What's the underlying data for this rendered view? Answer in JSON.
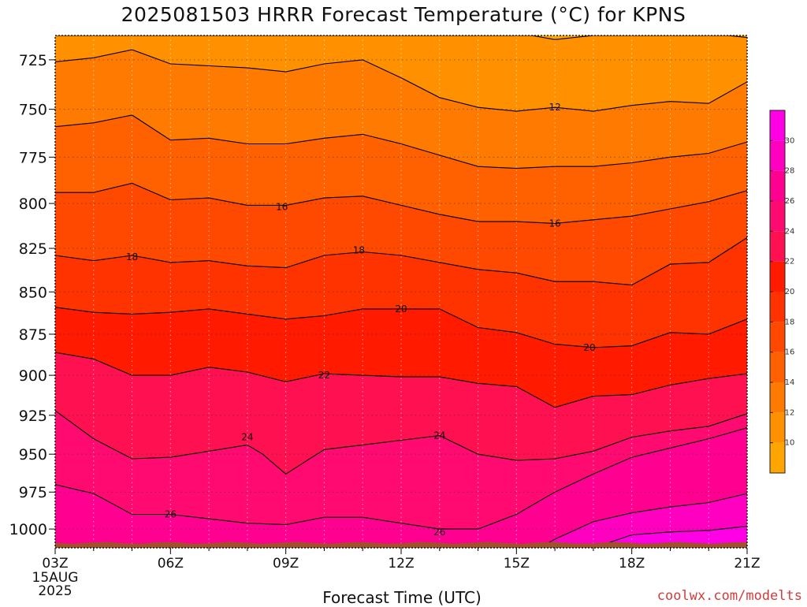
{
  "title": "2025081503 HRRR Forecast Temperature (°C) for KPNS",
  "credit": "coolwx.com/modelts",
  "colors": {
    "ground": "#a0522d",
    "contour_line": "#000000",
    "grid": "#bbbbbb"
  },
  "chart_data": {
    "type": "heatmap",
    "title": "2025081503 HRRR Forecast Temperature (°C) for KPNS",
    "xlabel": "Forecast Time (UTC)",
    "ylabel": "",
    "x_ticks": [
      "03Z",
      "06Z",
      "09Z",
      "12Z",
      "15Z",
      "18Z",
      "21Z"
    ],
    "x_tick_hours": [
      3,
      6,
      9,
      12,
      15,
      18,
      21
    ],
    "x_first_tick_extra": [
      "15AUG",
      "2025"
    ],
    "xlim": [
      3,
      21
    ],
    "y_ticks": [
      725,
      750,
      775,
      800,
      825,
      850,
      875,
      900,
      925,
      950,
      975,
      1000
    ],
    "ylim": [
      1013,
      713
    ],
    "y_scale": "log",
    "grid": true,
    "colorbar": {
      "ticks": [
        10,
        12,
        14,
        16,
        18,
        20,
        22,
        24,
        26,
        28,
        30
      ],
      "bins": [
        {
          "range": [
            8,
            10
          ],
          "color": "#ffa500"
        },
        {
          "range": [
            10,
            12
          ],
          "color": "#ff9000"
        },
        {
          "range": [
            12,
            14
          ],
          "color": "#ff7a00"
        },
        {
          "range": [
            14,
            16
          ],
          "color": "#ff6000"
        },
        {
          "range": [
            16,
            18
          ],
          "color": "#ff4800"
        },
        {
          "range": [
            18,
            20
          ],
          "color": "#ff3300"
        },
        {
          "range": [
            20,
            22
          ],
          "color": "#ff1a00"
        },
        {
          "range": [
            22,
            24
          ],
          "color": "#ff1050"
        },
        {
          "range": [
            24,
            26
          ],
          "color": "#ff0a70"
        },
        {
          "range": [
            26,
            28
          ],
          "color": "#ff0090"
        },
        {
          "range": [
            28,
            30
          ],
          "color": "#ff00c0"
        },
        {
          "range": [
            30,
            32
          ],
          "color": "#ff00e6"
        }
      ]
    },
    "contours": [
      {
        "level": 10,
        "points": [
          [
            3,
            713
          ],
          [
            15.4,
            713
          ],
          [
            16,
            715
          ],
          [
            17,
            713
          ],
          [
            20.5,
            713
          ],
          [
            21,
            714
          ]
        ]
      },
      {
        "level": 12,
        "points": [
          [
            3,
            726
          ],
          [
            4,
            724
          ],
          [
            5,
            720
          ],
          [
            6,
            727
          ],
          [
            7,
            728
          ],
          [
            8,
            729
          ],
          [
            9,
            731
          ],
          [
            10,
            727
          ],
          [
            11,
            725
          ],
          [
            12,
            734
          ],
          [
            13,
            744
          ],
          [
            14,
            749
          ],
          [
            15,
            751
          ],
          [
            16,
            749
          ],
          [
            17,
            751
          ],
          [
            18,
            748
          ],
          [
            19,
            746
          ],
          [
            20,
            747
          ],
          [
            21,
            736
          ]
        ]
      },
      {
        "level": 14,
        "points": [
          [
            3,
            759
          ],
          [
            4,
            757
          ],
          [
            5,
            753
          ],
          [
            6,
            766
          ],
          [
            7,
            765
          ],
          [
            8,
            768
          ],
          [
            9,
            768
          ],
          [
            10,
            765
          ],
          [
            11,
            763
          ],
          [
            12,
            768
          ],
          [
            13,
            774
          ],
          [
            14,
            780
          ],
          [
            15,
            781
          ],
          [
            16,
            780
          ],
          [
            17,
            780
          ],
          [
            18,
            778
          ],
          [
            19,
            775
          ],
          [
            20,
            773
          ],
          [
            21,
            767
          ]
        ]
      },
      {
        "level": 16,
        "points": [
          [
            3,
            794
          ],
          [
            4,
            794
          ],
          [
            5,
            789
          ],
          [
            6,
            798
          ],
          [
            7,
            797
          ],
          [
            8,
            801
          ],
          [
            9,
            801
          ],
          [
            10,
            797
          ],
          [
            11,
            796
          ],
          [
            12,
            801
          ],
          [
            13,
            806
          ],
          [
            14,
            810
          ],
          [
            15,
            810
          ],
          [
            16,
            811
          ],
          [
            17,
            809
          ],
          [
            18,
            807
          ],
          [
            19,
            803
          ],
          [
            20,
            799
          ],
          [
            21,
            793
          ]
        ]
      },
      {
        "level": 18,
        "points": [
          [
            3,
            829
          ],
          [
            4,
            832
          ],
          [
            5,
            829
          ],
          [
            6,
            833
          ],
          [
            7,
            832
          ],
          [
            8,
            835
          ],
          [
            9,
            836
          ],
          [
            10,
            829
          ],
          [
            11,
            827
          ],
          [
            12,
            829
          ],
          [
            13,
            833
          ],
          [
            14,
            837
          ],
          [
            15,
            839
          ],
          [
            16,
            844
          ],
          [
            17,
            844
          ],
          [
            18,
            846
          ],
          [
            19,
            834
          ],
          [
            20,
            833
          ],
          [
            21,
            819
          ]
        ]
      },
      {
        "level": 20,
        "points": [
          [
            3,
            859
          ],
          [
            4,
            862
          ],
          [
            5,
            863
          ],
          [
            6,
            862
          ],
          [
            7,
            860
          ],
          [
            8,
            863
          ],
          [
            9,
            866
          ],
          [
            10,
            864
          ],
          [
            11,
            860
          ],
          [
            12,
            860
          ],
          [
            13,
            860
          ],
          [
            14,
            871
          ],
          [
            15,
            874
          ],
          [
            16,
            881
          ],
          [
            17,
            883
          ],
          [
            18,
            882
          ],
          [
            19,
            874
          ],
          [
            20,
            875
          ],
          [
            21,
            866
          ]
        ]
      },
      {
        "level": 22,
        "points": [
          [
            3,
            886
          ],
          [
            4,
            890
          ],
          [
            5,
            900
          ],
          [
            6,
            900
          ],
          [
            7,
            895
          ],
          [
            8,
            898
          ],
          [
            9,
            904
          ],
          [
            10,
            899
          ],
          [
            11,
            900
          ],
          [
            12,
            901
          ],
          [
            13,
            901
          ],
          [
            14,
            905
          ],
          [
            15,
            907
          ],
          [
            16,
            920
          ],
          [
            17,
            913
          ],
          [
            18,
            912
          ],
          [
            19,
            906
          ],
          [
            20,
            902
          ],
          [
            21,
            899
          ]
        ]
      },
      {
        "level": 24,
        "points": [
          [
            3,
            922
          ],
          [
            4,
            940
          ],
          [
            5,
            953
          ],
          [
            6,
            952
          ],
          [
            7,
            948
          ],
          [
            8,
            944
          ],
          [
            8.4,
            950
          ],
          [
            9,
            963
          ],
          [
            10,
            947
          ],
          [
            11,
            944
          ],
          [
            12,
            941
          ],
          [
            13,
            938
          ],
          [
            14,
            950
          ],
          [
            15,
            954
          ],
          [
            16,
            953
          ],
          [
            17,
            948
          ],
          [
            18,
            939
          ],
          [
            19,
            935
          ],
          [
            20,
            932
          ],
          [
            21,
            924
          ]
        ]
      },
      {
        "level": 26,
        "points": [
          [
            3,
            970
          ],
          [
            4,
            976
          ],
          [
            5,
            990
          ],
          [
            6,
            990
          ],
          [
            7,
            993
          ],
          [
            8,
            996
          ],
          [
            9,
            997
          ],
          [
            10,
            992
          ],
          [
            11,
            992
          ],
          [
            12,
            996
          ],
          [
            13,
            1000
          ],
          [
            14,
            1000
          ],
          [
            15,
            990
          ],
          [
            16,
            975
          ],
          [
            17,
            963
          ],
          [
            18,
            952
          ],
          [
            19,
            946
          ],
          [
            20,
            940
          ],
          [
            21,
            933
          ]
        ]
      },
      {
        "level": 28,
        "points": [
          [
            15.6,
            1013
          ],
          [
            16,
            1007
          ],
          [
            17,
            995
          ],
          [
            18,
            989
          ],
          [
            19,
            985
          ],
          [
            20,
            982
          ],
          [
            21,
            976
          ]
        ]
      },
      {
        "level": 30,
        "points": [
          [
            17,
            1013
          ],
          [
            18,
            1004
          ],
          [
            19,
            1002
          ],
          [
            20,
            1001
          ],
          [
            21,
            998
          ]
        ]
      }
    ],
    "contour_labels": [
      {
        "text": "12",
        "x": 16.0,
        "y": 749
      },
      {
        "text": "16",
        "x": 8.9,
        "y": 802
      },
      {
        "text": "16",
        "x": 16.0,
        "y": 811
      },
      {
        "text": "18",
        "x": 5.0,
        "y": 830
      },
      {
        "text": "18",
        "x": 10.9,
        "y": 826
      },
      {
        "text": "20",
        "x": 12.0,
        "y": 860
      },
      {
        "text": "20",
        "x": 16.9,
        "y": 883
      },
      {
        "text": "22",
        "x": 10.0,
        "y": 900
      },
      {
        "text": "24",
        "x": 8.0,
        "y": 939
      },
      {
        "text": "24",
        "x": 13.0,
        "y": 938
      },
      {
        "text": "26",
        "x": 6.0,
        "y": 990
      },
      {
        "text": "26",
        "x": 13.0,
        "y": 1002
      }
    ]
  }
}
